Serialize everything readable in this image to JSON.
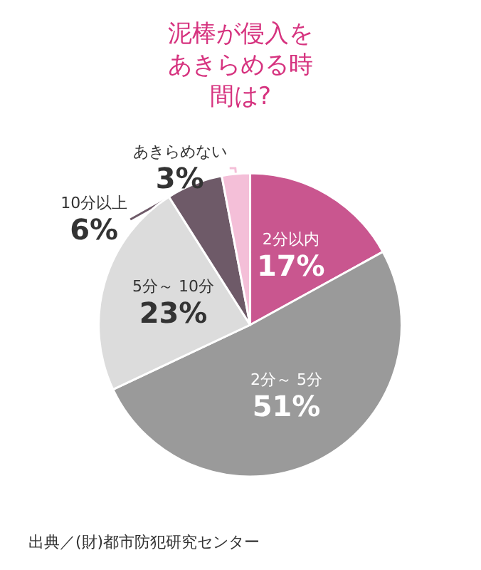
{
  "chart_data": {
    "type": "pie",
    "title": "泥棒が侵入をあきらめる時間は?",
    "categories": [
      "2分以内",
      "2分～ 5分",
      "5分～ 10分",
      "10分以上",
      "あきらめない"
    ],
    "values": [
      17,
      51,
      23,
      6,
      3
    ],
    "colors": [
      "#c9568f",
      "#9a9a9a",
      "#dcdcdc",
      "#6e5a68",
      "#f4bfd8"
    ],
    "value_labels": [
      "17%",
      "51%",
      "23%",
      "6%",
      "3%"
    ],
    "annotations": [
      "出典／(財)都市防犯研究センター"
    ]
  }
}
